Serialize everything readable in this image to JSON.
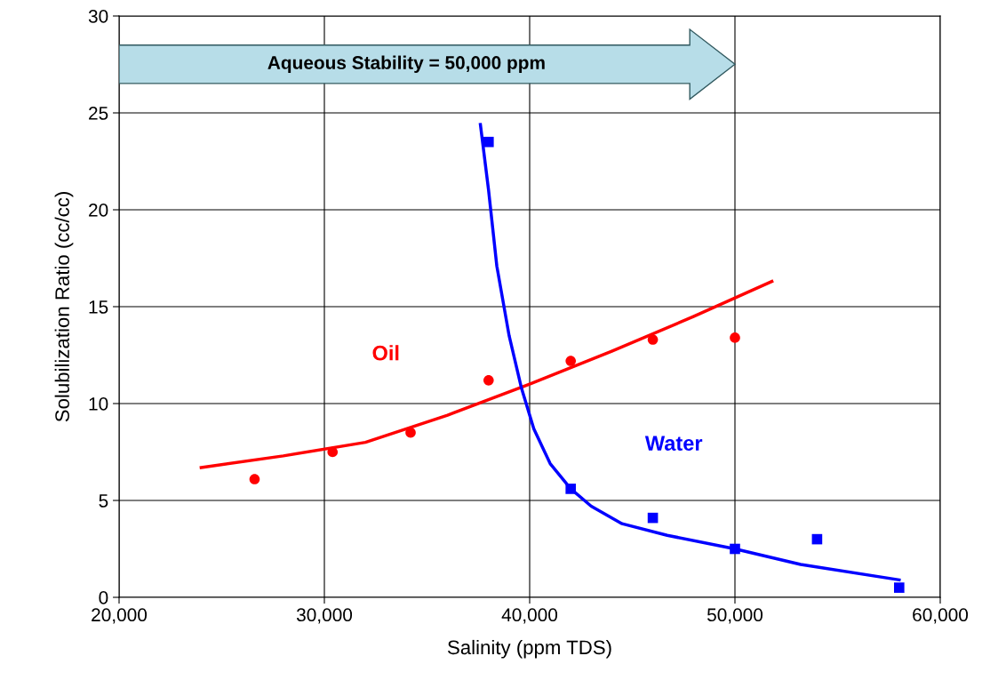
{
  "chart_data": {
    "type": "scatter",
    "xlabel": "Salinity (ppm TDS)",
    "ylabel": "Solubilization Ratio (cc/cc)",
    "xlim": [
      20000,
      60000
    ],
    "xticks": [
      {
        "value": 20000,
        "label": "20,000"
      },
      {
        "value": 30000,
        "label": "30,000"
      },
      {
        "value": 40000,
        "label": "40,000"
      },
      {
        "value": 50000,
        "label": "50,000"
      },
      {
        "value": 60000,
        "label": "60,000"
      }
    ],
    "ylim": [
      0,
      30
    ],
    "yticks": [
      0,
      5,
      10,
      15,
      20,
      25,
      30
    ],
    "grid": true,
    "legend": false,
    "series": [
      {
        "name": "Oil",
        "marker": "circle",
        "color": "#ff0000",
        "x": [
          26600,
          30400,
          34200,
          38000,
          42000,
          46000,
          50000
        ],
        "values": [
          6.1,
          7.5,
          8.5,
          11.2,
          12.2,
          13.3,
          13.4
        ]
      },
      {
        "name": "Water",
        "marker": "square",
        "color": "#0000ff",
        "x": [
          38000,
          42000,
          46000,
          50000,
          54000,
          58000
        ],
        "values": [
          23.5,
          5.6,
          4.1,
          2.5,
          3.0,
          0.5
        ]
      },
      {
        "type": "line",
        "marker": "none",
        "color": "#ff0000",
        "x": [
          24000,
          28000,
          32000,
          36000,
          40000,
          44000,
          48000,
          51800
        ],
        "values": [
          6.7,
          7.3,
          8.0,
          9.4,
          11.0,
          12.7,
          14.5,
          16.3
        ]
      },
      {
        "type": "line",
        "marker": "none",
        "color": "#0000ff",
        "x": [
          37600,
          38000,
          38400,
          39000,
          39600,
          40200,
          41000,
          42000,
          43000,
          44500,
          46700,
          50000,
          53200,
          58000
        ],
        "values": [
          24.4,
          21.0,
          17.1,
          13.5,
          10.8,
          8.7,
          6.9,
          5.6,
          4.7,
          3.8,
          3.2,
          2.5,
          1.7,
          0.9
        ]
      }
    ],
    "annotations": [
      "Aqueous Stability = 50,000 ppm"
    ]
  }
}
